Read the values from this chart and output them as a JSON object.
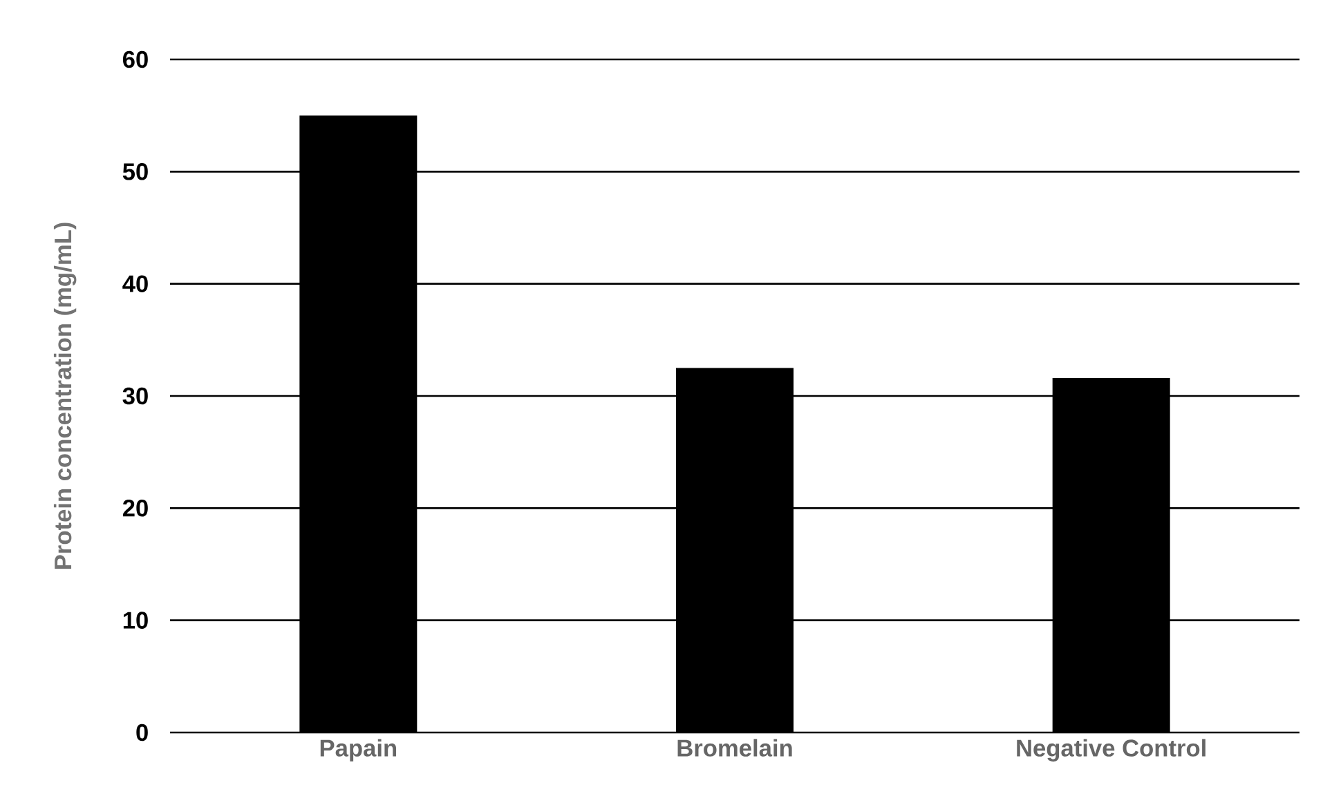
{
  "chart_data": {
    "type": "bar",
    "ylabel": "Protein concentration  (mg/mL)",
    "categories": [
      "Papain",
      "Bromelain",
      "Negative Control"
    ],
    "values": [
      55,
      32.5,
      31.6
    ],
    "color": "#000000",
    "ylim": [
      0,
      60
    ],
    "yticks": [
      0,
      10,
      20,
      30,
      40,
      50,
      60
    ],
    "grid": "y"
  }
}
